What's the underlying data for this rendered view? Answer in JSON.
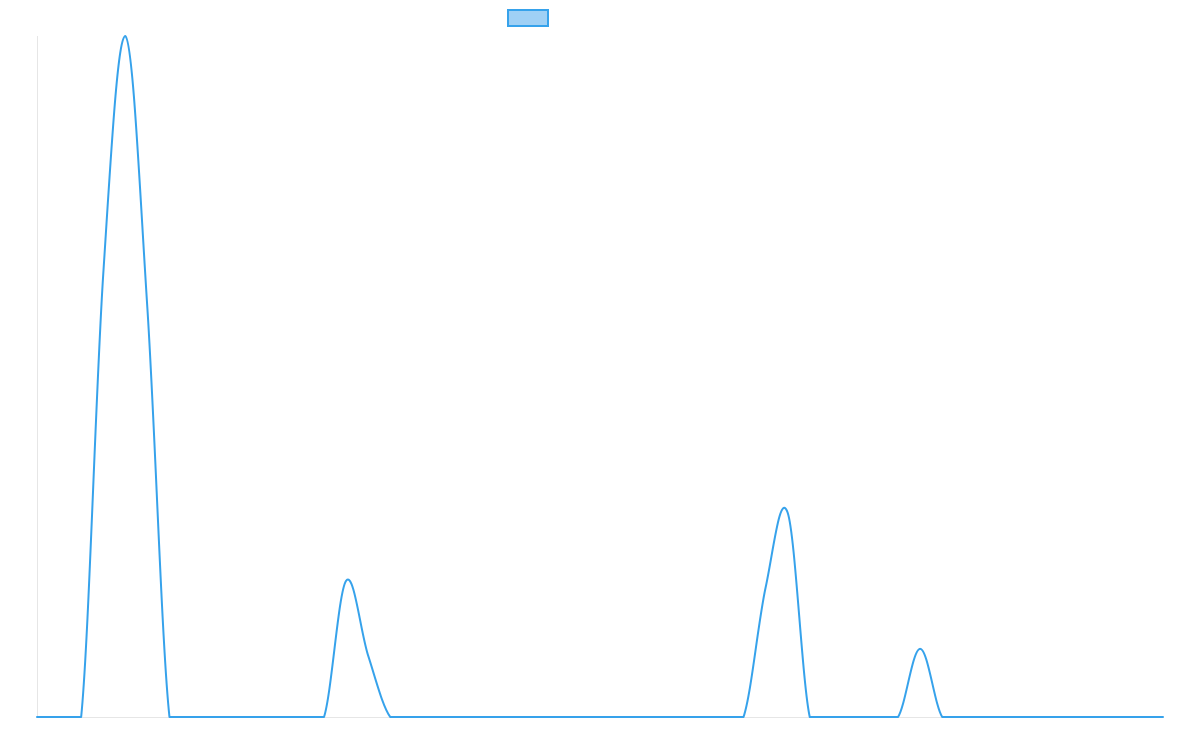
{
  "colors": {
    "series": "#36a2eb",
    "legend_fill": "#9fd0f5",
    "axis": "#e6e6e6"
  },
  "legend": {
    "placement": "top-center",
    "label": ""
  },
  "chart_data": {
    "type": "line",
    "x": [
      0,
      1,
      2,
      3,
      4,
      5,
      6,
      7,
      8,
      9,
      10,
      11,
      12,
      13,
      14,
      15,
      16,
      17,
      18,
      19,
      20,
      21,
      22,
      23,
      24,
      25,
      26,
      27,
      28,
      29,
      30,
      31,
      32,
      33,
      34,
      35,
      36,
      37,
      38,
      39,
      40,
      41,
      42,
      43,
      44,
      45,
      46,
      47,
      48,
      49,
      50,
      51
    ],
    "series": [
      {
        "values": [
          0,
          0,
          0,
          65,
          100,
          60,
          0,
          0,
          0,
          0,
          0,
          0,
          0,
          0,
          20,
          9,
          0,
          0,
          0,
          0,
          0,
          0,
          0,
          0,
          0,
          0,
          0,
          0,
          0,
          0,
          0,
          0,
          0,
          19,
          30,
          0,
          0,
          0,
          0,
          0,
          10,
          0,
          0,
          0,
          0,
          0,
          0,
          0,
          0,
          0,
          0,
          0
        ]
      }
    ],
    "xlim": [
      0,
      51
    ],
    "ylim": [
      0,
      100
    ],
    "grid": false,
    "title": "",
    "xlabel": "",
    "ylabel": ""
  }
}
